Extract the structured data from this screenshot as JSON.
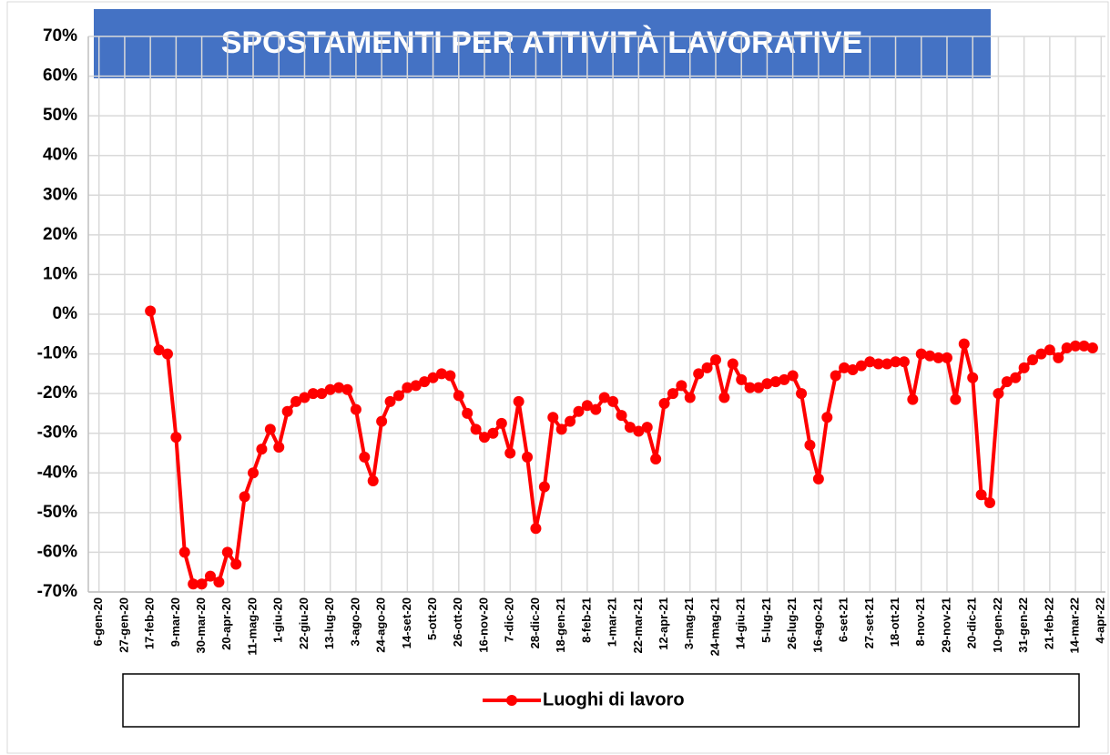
{
  "chart_data": {
    "type": "line",
    "title": "SPOSTAMENTI PER ATTIVITÀ LAVORATIVE",
    "categories": [
      "6-gen-20",
      null,
      null,
      "27-gen-20",
      null,
      null,
      "17-feb-20",
      null,
      null,
      "9-mar-20",
      null,
      null,
      "30-mar-20",
      null,
      null,
      "20-apr-20",
      null,
      null,
      "11-mag-20",
      null,
      null,
      "1-giu-20",
      null,
      null,
      "22-giu-20",
      null,
      null,
      "13-lug-20",
      null,
      null,
      "3-ago-20",
      null,
      null,
      "24-ago-20",
      null,
      null,
      "14-set-20",
      null,
      null,
      "5-ott-20",
      null,
      null,
      "26-ott-20",
      null,
      null,
      "16-nov-20",
      null,
      null,
      "7-dic-20",
      null,
      null,
      "28-dic-20",
      null,
      null,
      "18-gen-21",
      null,
      null,
      "8-feb-21",
      null,
      null,
      "1-mar-21",
      null,
      null,
      "22-mar-21",
      null,
      null,
      "12-apr-21",
      null,
      null,
      "3-mag-21",
      null,
      null,
      "24-mag-21",
      null,
      null,
      "14-giu-21",
      null,
      null,
      "5-lug-21",
      null,
      null,
      "26-lug-21",
      null,
      null,
      "16-ago-21",
      null,
      null,
      "6-set-21",
      null,
      null,
      "27-set-21",
      null,
      null,
      "18-ott-21",
      null,
      null,
      "8-nov-21",
      null,
      null,
      "29-nov-21",
      null,
      null,
      "20-dic-21",
      null,
      null,
      "10-gen-22",
      null,
      null,
      "31-gen-22",
      null,
      null,
      "21-feb-22",
      null,
      null,
      "14-mar-22",
      null,
      null,
      "4-apr-22"
    ],
    "series": [
      {
        "name": "Luoghi di lavoro",
        "color": "#ff0000",
        "values": [
          null,
          null,
          null,
          null,
          null,
          null,
          0.8,
          -9,
          -10,
          -31,
          -60,
          -68,
          -68,
          -66,
          -67.5,
          -60,
          -63,
          -46,
          -40,
          -34,
          -29,
          -33.5,
          -24.5,
          -22,
          -21,
          -20,
          -20,
          -19,
          -18.5,
          -19,
          -24,
          -36,
          -42,
          -27,
          -22,
          -20.5,
          -18.5,
          -18,
          -17,
          -16,
          -15,
          -15.5,
          -20.5,
          -25,
          -29,
          -31,
          -30,
          -27.5,
          -35,
          -22,
          -36,
          -54,
          -43.5,
          -26,
          -29,
          -27,
          -24.5,
          -23,
          -24,
          -21,
          -22,
          -25.5,
          -28.5,
          -29.5,
          -28.5,
          -36.5,
          -22.5,
          -20,
          -18,
          -21,
          -15,
          -13.5,
          -11.5,
          -21,
          -12.5,
          -16.5,
          -18.5,
          -18.5,
          -17.5,
          -17,
          -16.5,
          -15.5,
          -20,
          -33,
          -41.5,
          -26,
          -15.5,
          -13.5,
          -14,
          -13,
          -12,
          -12.5,
          -12.5,
          -12,
          -12,
          -21.5,
          -10,
          -10.5,
          -11,
          -11,
          -21.5,
          -7.5,
          -16,
          -45.5,
          -47.5,
          -20,
          -17,
          -16,
          -13.5,
          -11.5,
          -10,
          -9,
          -11,
          -8.5,
          -8,
          -8,
          -8.5,
          null
        ]
      }
    ],
    "ylim": [
      -70,
      70
    ],
    "yticks": [
      {
        "value": -70,
        "label": "-70%"
      },
      {
        "value": -60,
        "label": "-60%"
      },
      {
        "value": -50,
        "label": "-50%"
      },
      {
        "value": -40,
        "label": "-40%"
      },
      {
        "value": -30,
        "label": "-30%"
      },
      {
        "value": -20,
        "label": "-20%"
      },
      {
        "value": -10,
        "label": "-10%"
      },
      {
        "value": 0,
        "label": "0%"
      },
      {
        "value": 10,
        "label": "10%"
      },
      {
        "value": 20,
        "label": "20%"
      },
      {
        "value": 30,
        "label": "30%"
      },
      {
        "value": 40,
        "label": "40%"
      },
      {
        "value": 50,
        "label": "50%"
      },
      {
        "value": 60,
        "label": "60%"
      },
      {
        "value": 70,
        "label": "70%"
      }
    ],
    "grid": true
  }
}
